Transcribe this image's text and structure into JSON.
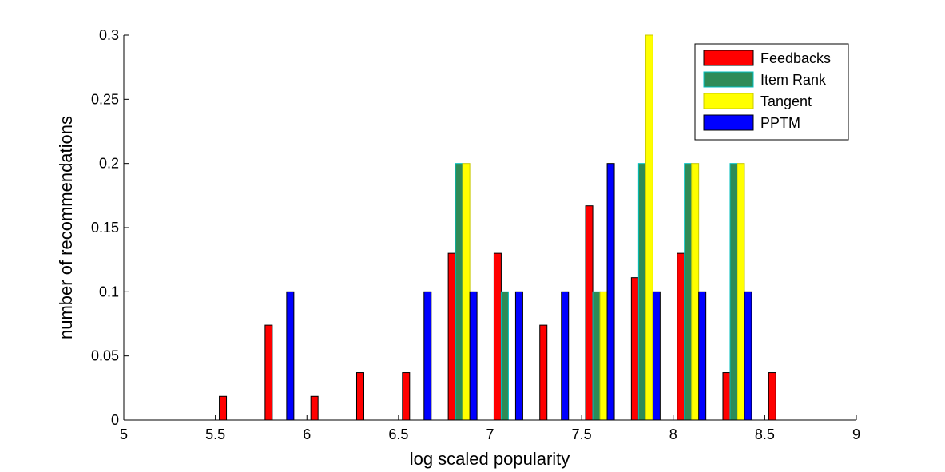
{
  "chart_data": {
    "type": "bar",
    "xlabel": "log scaled popularity",
    "ylabel": "number of recommendations",
    "xlim": [
      5,
      9
    ],
    "ylim": [
      0,
      0.3
    ],
    "xticks": [
      5,
      5.5,
      6,
      6.5,
      7,
      7.5,
      8,
      8.5,
      9
    ],
    "xtick_labels": [
      "5",
      "5.5",
      "6",
      "6.5",
      "7",
      "7.5",
      "8",
      "8.5",
      "9"
    ],
    "yticks": [
      0,
      0.05,
      0.1,
      0.15,
      0.2,
      0.25,
      0.3
    ],
    "ytick_labels": [
      "0",
      "0.05",
      "0.1",
      "0.15",
      "0.2",
      "0.25",
      "0.3"
    ],
    "grid": false,
    "legend_position": "top-right",
    "x": [
      5.1,
      5.35,
      5.6,
      5.85,
      6.1,
      6.35,
      6.6,
      6.85,
      7.1,
      7.35,
      7.6,
      7.85,
      8.1,
      8.35,
      8.6,
      8.85
    ],
    "series": [
      {
        "name": "Feedbacks",
        "color": "#ff0000",
        "edge": "#000000",
        "values": [
          0,
          0,
          0.0185,
          0.074,
          0.0185,
          0.037,
          0.037,
          0.13,
          0.13,
          0.074,
          0.167,
          0.111,
          0.13,
          0.037,
          0.037,
          0
        ]
      },
      {
        "name": "Item Rank",
        "color": "#2e8b57",
        "edge": "#00bfbf",
        "values": [
          0,
          0,
          0,
          0,
          0,
          0,
          0,
          0.2,
          0.1,
          0,
          0.1,
          0.2,
          0.2,
          0.2,
          0,
          0
        ]
      },
      {
        "name": "Tangent",
        "color": "#ffff00",
        "edge": "#c8c800",
        "values": [
          0,
          0,
          0,
          0,
          0,
          0,
          0,
          0.2,
          0,
          0,
          0.1,
          0.3,
          0.2,
          0.2,
          0,
          0
        ]
      },
      {
        "name": "PPTM",
        "color": "#0000ff",
        "edge": "#000000",
        "values": [
          0,
          0,
          0,
          0.1,
          0,
          0,
          0.1,
          0.1,
          0.1,
          0.1,
          0.2,
          0.1,
          0.1,
          0.1,
          0,
          0
        ]
      }
    ]
  }
}
